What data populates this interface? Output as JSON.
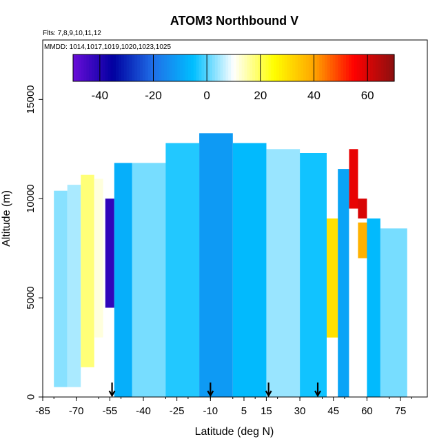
{
  "chart_data": {
    "type": "heatmap",
    "title": "ATOM3 Northbound V",
    "flights_label": "Flts: 7,8,9,10,11,12",
    "dates_label": "MMDD: 1014,1017,1019,1020,1023,1025",
    "xlabel": "Latitude (deg N)",
    "ylabel": "Altitude (m)",
    "xlim": [
      -85,
      87
    ],
    "ylim": [
      0,
      18000
    ],
    "x_ticks": [
      -85,
      -70,
      -55,
      -40,
      -25,
      -10,
      5,
      15,
      30,
      45,
      60,
      75
    ],
    "y_ticks": [
      0,
      5000,
      10000,
      15000
    ],
    "colorbar": {
      "range": [
        -50,
        70
      ],
      "ticks": [
        -40,
        -20,
        0,
        20,
        40,
        60
      ],
      "colors": [
        "#6a0dd8",
        "#0000a0",
        "#1f6fe8",
        "#00bfff",
        "#ffffff",
        "#ffff00",
        "#ffa500",
        "#ff0000",
        "#8b1010"
      ]
    },
    "arrows_latitude": [
      -54,
      -10,
      16,
      38
    ],
    "v_wind_bands": [
      {
        "lat_min": -80,
        "lat_max": -74,
        "alt_min": 500,
        "alt_max": 10400,
        "v": 3
      },
      {
        "lat_min": -74,
        "lat_max": -68,
        "alt_min": 500,
        "alt_max": 10700,
        "v": 5
      },
      {
        "lat_min": -68,
        "lat_max": -62,
        "alt_min": 1500,
        "alt_max": 11200,
        "v": 18
      },
      {
        "lat_min": -62,
        "lat_max": -58,
        "alt_min": 3000,
        "alt_max": 11000,
        "v": 12
      },
      {
        "lat_min": -57,
        "lat_max": -53,
        "alt_min": 4500,
        "alt_max": 10000,
        "v": -42
      },
      {
        "lat_min": -53,
        "lat_max": -45,
        "alt_min": 0,
        "alt_max": 11800,
        "v": -8
      },
      {
        "lat_min": -45,
        "lat_max": -30,
        "alt_min": 0,
        "alt_max": 11800,
        "v": 2
      },
      {
        "lat_min": -30,
        "lat_max": -15,
        "alt_min": 0,
        "alt_max": 12800,
        "v": -3
      },
      {
        "lat_min": -15,
        "lat_max": 0,
        "alt_min": 0,
        "alt_max": 13300,
        "v": -12
      },
      {
        "lat_min": 0,
        "lat_max": 15,
        "alt_min": 0,
        "alt_max": 12800,
        "v": -6
      },
      {
        "lat_min": 15,
        "lat_max": 30,
        "alt_min": 0,
        "alt_max": 12500,
        "v": 4
      },
      {
        "lat_min": 30,
        "lat_max": 42,
        "alt_min": 0,
        "alt_max": 12300,
        "v": -4
      },
      {
        "lat_min": 42,
        "lat_max": 47,
        "alt_min": 3000,
        "alt_max": 9000,
        "v": 30
      },
      {
        "lat_min": 47,
        "lat_max": 52,
        "alt_min": 0,
        "alt_max": 11500,
        "v": -10
      },
      {
        "lat_min": 52,
        "lat_max": 56,
        "alt_min": 9500,
        "alt_max": 12500,
        "v": 58
      },
      {
        "lat_min": 56,
        "lat_max": 60,
        "alt_min": 9000,
        "alt_max": 10000,
        "v": 60
      },
      {
        "lat_min": 56,
        "lat_max": 62,
        "alt_min": 7000,
        "alt_max": 8800,
        "v": 38
      },
      {
        "lat_min": 60,
        "lat_max": 66,
        "alt_min": 0,
        "alt_max": 9000,
        "v": -6
      },
      {
        "lat_min": 66,
        "lat_max": 78,
        "alt_min": 0,
        "alt_max": 8500,
        "v": 2
      }
    ]
  }
}
